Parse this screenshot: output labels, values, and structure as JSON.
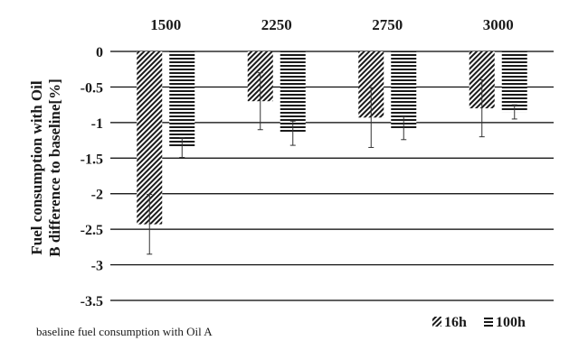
{
  "chart_data": {
    "type": "bar",
    "categories": [
      "1500",
      "2250",
      "2750",
      "3000"
    ],
    "series": [
      {
        "name": "16h",
        "values": [
          -2.43,
          -0.7,
          -0.93,
          -0.8
        ],
        "error": [
          0.42,
          0.4,
          0.42,
          0.4
        ],
        "pattern": "diagonal"
      },
      {
        "name": "100h",
        "values": [
          -1.35,
          -1.15,
          -1.08,
          -0.85
        ],
        "error": [
          0.14,
          0.17,
          0.16,
          0.1
        ],
        "pattern": "horizontal"
      }
    ],
    "ylabel_line1": "Fuel consumption with Oil",
    "ylabel_line2": "B  difference to baseline[%]",
    "ylim": [
      -3.5,
      0
    ],
    "yticks": [
      "0",
      "-0.5",
      "-1",
      "-1.5",
      "-2",
      "-2.5",
      "-3",
      "-3.5"
    ],
    "ytick_values": [
      0,
      -0.5,
      -1,
      -1.5,
      -2,
      -2.5,
      -3,
      -3.5
    ],
    "footnote": "baseline fuel consumption  with Oil A",
    "legend_position": "bottom-right",
    "grid": true,
    "colors": {
      "ink": "#1a1a1a",
      "grid": "#000000",
      "background": "#ffffff"
    }
  }
}
